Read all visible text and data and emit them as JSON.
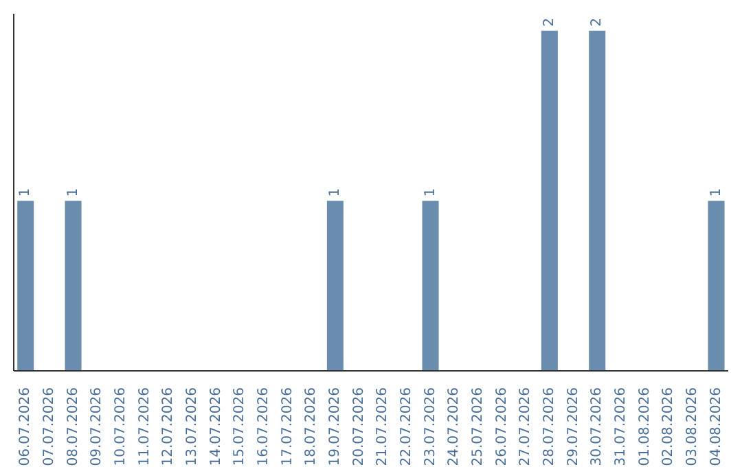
{
  "chart_data": {
    "type": "bar",
    "categories": [
      "06.07.2026",
      "07.07.2026",
      "08.07.2026",
      "09.07.2026",
      "10.07.2026",
      "11.07.2026",
      "12.07.2026",
      "13.07.2026",
      "14.07.2026",
      "15.07.2026",
      "16.07.2026",
      "17.07.2026",
      "18.07.2026",
      "19.07.2026",
      "20.07.2026",
      "21.07.2026",
      "22.07.2026",
      "23.07.2026",
      "24.07.2026",
      "25.07.2026",
      "26.07.2026",
      "27.07.2026",
      "28.07.2026",
      "29.07.2026",
      "30.07.2026",
      "31.07.2026",
      "01.08.2026",
      "02.08.2026",
      "03.08.2026",
      "04.08.2026"
    ],
    "values": [
      1,
      0,
      1,
      0,
      0,
      0,
      0,
      0,
      0,
      0,
      0,
      0,
      0,
      1,
      0,
      0,
      0,
      1,
      0,
      0,
      0,
      0,
      2,
      0,
      2,
      0,
      0,
      0,
      0,
      1
    ],
    "value_labels": [
      "1",
      null,
      "1",
      null,
      null,
      null,
      null,
      null,
      null,
      null,
      null,
      null,
      null,
      "1",
      null,
      null,
      null,
      "1",
      null,
      null,
      null,
      null,
      "2",
      null,
      "2",
      null,
      null,
      null,
      null,
      "1"
    ],
    "color": "#6a8cad"
  }
}
